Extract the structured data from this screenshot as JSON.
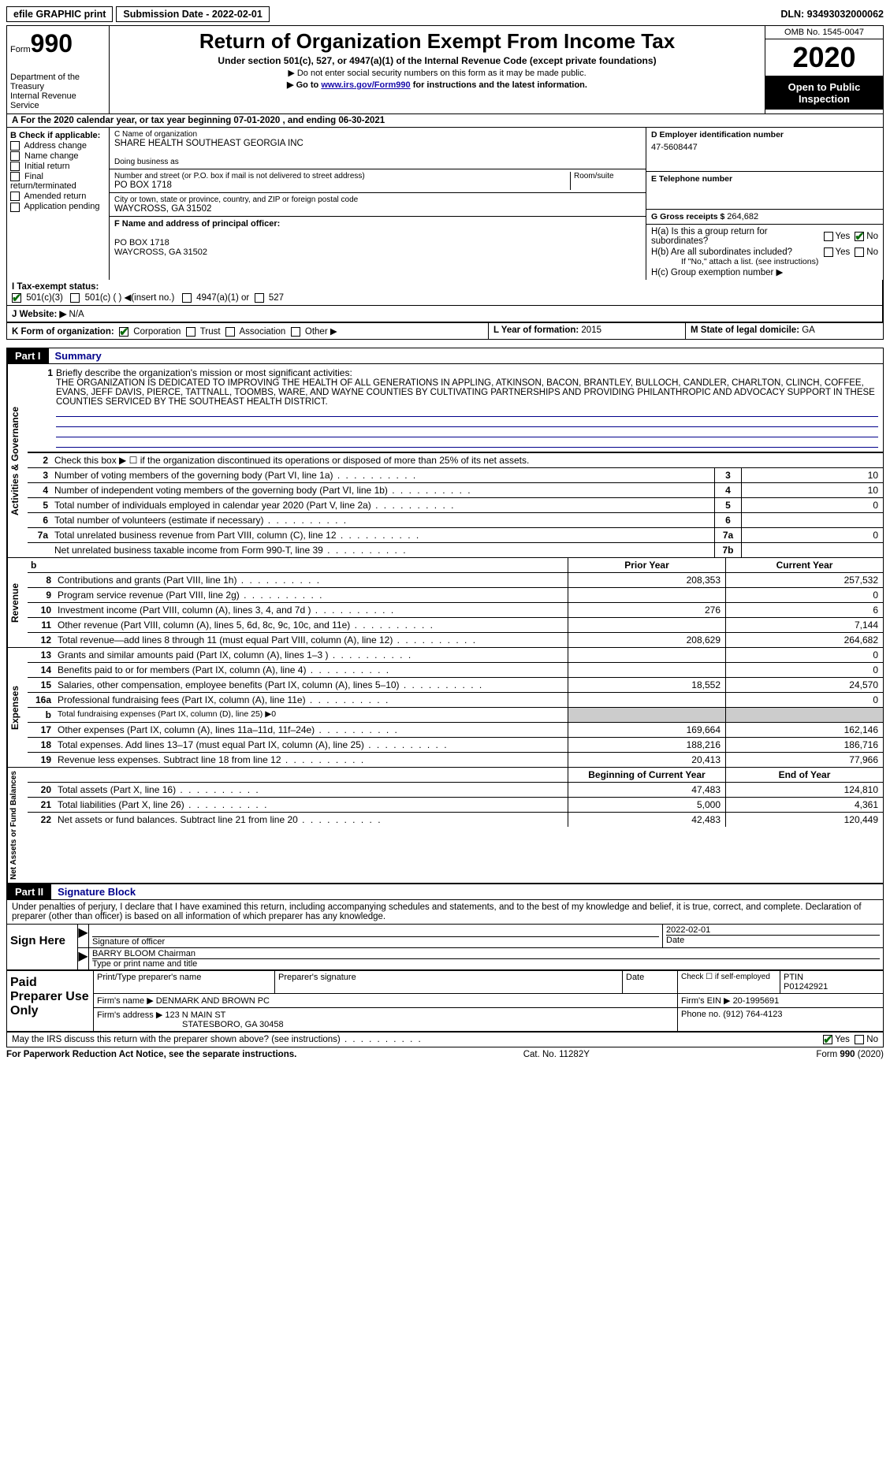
{
  "topbar": {
    "efile": "efile GRAPHIC print",
    "sub_label": "Submission Date - 2022-02-01",
    "dln": "DLN: 93493032000062"
  },
  "header": {
    "form_small": "Form",
    "form_big": "990",
    "dept1": "Department of the Treasury",
    "dept2": "Internal Revenue Service",
    "title": "Return of Organization Exempt From Income Tax",
    "sub": "Under section 501(c), 527, or 4947(a)(1) of the Internal Revenue Code (except private foundations)",
    "note1": "▶ Do not enter social security numbers on this form as it may be made public.",
    "note2_pre": "▶ Go to ",
    "note2_link": "www.irs.gov/Form990",
    "note2_post": " for instructions and the latest information.",
    "omb": "OMB No. 1545-0047",
    "year": "2020",
    "inspect1": "Open to Public",
    "inspect2": "Inspection"
  },
  "row_a": "A For the 2020 calendar year, or tax year beginning 07-01-2020   , and ending 06-30-2021",
  "col_b": {
    "label": "B Check if applicable:",
    "items": [
      "Address change",
      "Name change",
      "Initial return",
      "Final return/terminated",
      "Amended return",
      "Application pending"
    ]
  },
  "col_c": {
    "name_label": "C Name of organization",
    "name": "SHARE HEALTH SOUTHEAST GEORGIA INC",
    "dba_label": "Doing business as",
    "dba": "",
    "addr_label": "Number and street (or P.O. box if mail is not delivered to street address)",
    "addr": "PO BOX 1718",
    "suite_label": "Room/suite",
    "city_label": "City or town, state or province, country, and ZIP or foreign postal code",
    "city": "WAYCROSS, GA  31502",
    "officer_label": "F  Name and address of principal officer:",
    "officer_addr1": "PO BOX 1718",
    "officer_addr2": "WAYCROSS, GA  31502"
  },
  "col_d": {
    "ein_label": "D Employer identification number",
    "ein": "47-5608447",
    "phone_label": "E Telephone number",
    "phone": "",
    "gross_label": "G Gross receipts $ ",
    "gross": "264,682"
  },
  "tax_exempt": {
    "label": "I  Tax-exempt status:",
    "opt1": "501(c)(3)",
    "opt2": "501(c) (  ) ◀(insert no.)",
    "opt3": "4947(a)(1) or",
    "opt4": "527"
  },
  "h_block": {
    "ha": "H(a)  Is this a group return for subordinates?",
    "hb": "H(b)  Are all subordinates included?",
    "hb_note": "If \"No,\" attach a list. (see instructions)",
    "hc": "H(c)  Group exemption number ▶",
    "yes": "Yes",
    "no": "No"
  },
  "row_j": {
    "label": "J  Website: ▶",
    "val": "N/A"
  },
  "row_k": {
    "label": "K Form of organization:",
    "opts": [
      "Corporation",
      "Trust",
      "Association",
      "Other ▶"
    ],
    "l_label": "L Year of formation: ",
    "l_val": "2015",
    "m_label": "M State of legal domicile: ",
    "m_val": "GA"
  },
  "part1": {
    "tab": "Part I",
    "title": "Summary"
  },
  "mission": {
    "num": "1",
    "label": "Briefly describe the organization's mission or most significant activities:",
    "text": "THE ORGANIZATION IS DEDICATED TO IMPROVING THE HEALTH OF ALL GENERATIONS IN APPLING, ATKINSON, BACON, BRANTLEY, BULLOCH, CANDLER, CHARLTON, CLINCH, COFFEE, EVANS, JEFF DAVIS, PIERCE, TATTNALL, TOOMBS, WARE, AND WAYNE COUNTIES BY CULTIVATING PARTNERSHIPS AND PROVIDING PHILANTHROPIC AND ADVOCACY SUPPORT IN THESE COUNTIES SERVICED BY THE SOUTHEAST HEALTH DISTRICT."
  },
  "gov_check": {
    "num": "2",
    "txt": "Check this box ▶ ☐  if the organization discontinued its operations or disposed of more than 25% of its net assets."
  },
  "gov": [
    {
      "n": "3",
      "t": "Number of voting members of the governing body (Part VI, line 1a)",
      "bn": "3",
      "v": "10"
    },
    {
      "n": "4",
      "t": "Number of independent voting members of the governing body (Part VI, line 1b)",
      "bn": "4",
      "v": "10"
    },
    {
      "n": "5",
      "t": "Total number of individuals employed in calendar year 2020 (Part V, line 2a)",
      "bn": "5",
      "v": "0"
    },
    {
      "n": "6",
      "t": "Total number of volunteers (estimate if necessary)",
      "bn": "6",
      "v": ""
    },
    {
      "n": "7a",
      "t": "Total unrelated business revenue from Part VIII, column (C), line 12",
      "bn": "7a",
      "v": "0"
    },
    {
      "n": "",
      "t": "Net unrelated business taxable income from Form 990-T, line 39",
      "bn": "7b",
      "v": ""
    }
  ],
  "vlabels": {
    "gov": "Activities & Governance",
    "rev": "Revenue",
    "exp": "Expenses",
    "net": "Net Assets or Fund Balances"
  },
  "fin_hdr": {
    "prior": "Prior Year",
    "curr": "Current Year",
    "beg": "Beginning of Current Year",
    "end": "End of Year"
  },
  "rev": [
    {
      "n": "8",
      "t": "Contributions and grants (Part VIII, line 1h)",
      "p": "208,353",
      "c": "257,532"
    },
    {
      "n": "9",
      "t": "Program service revenue (Part VIII, line 2g)",
      "p": "",
      "c": "0"
    },
    {
      "n": "10",
      "t": "Investment income (Part VIII, column (A), lines 3, 4, and 7d )",
      "p": "276",
      "c": "6"
    },
    {
      "n": "11",
      "t": "Other revenue (Part VIII, column (A), lines 5, 6d, 8c, 9c, 10c, and 11e)",
      "p": "",
      "c": "7,144"
    },
    {
      "n": "12",
      "t": "Total revenue—add lines 8 through 11 (must equal Part VIII, column (A), line 12)",
      "p": "208,629",
      "c": "264,682"
    }
  ],
  "exp": [
    {
      "n": "13",
      "t": "Grants and similar amounts paid (Part IX, column (A), lines 1–3 )",
      "p": "",
      "c": "0"
    },
    {
      "n": "14",
      "t": "Benefits paid to or for members (Part IX, column (A), line 4)",
      "p": "",
      "c": "0"
    },
    {
      "n": "15",
      "t": "Salaries, other compensation, employee benefits (Part IX, column (A), lines 5–10)",
      "p": "18,552",
      "c": "24,570"
    },
    {
      "n": "16a",
      "t": "Professional fundraising fees (Part IX, column (A), line 11e)",
      "p": "",
      "c": "0"
    },
    {
      "n": "b",
      "t": "Total fundraising expenses (Part IX, column (D), line 25) ▶0",
      "p": "GREY",
      "c": "GREY",
      "small": true
    },
    {
      "n": "17",
      "t": "Other expenses (Part IX, column (A), lines 11a–11d, 11f–24e)",
      "p": "169,664",
      "c": "162,146"
    },
    {
      "n": "18",
      "t": "Total expenses. Add lines 13–17 (must equal Part IX, column (A), line 25)",
      "p": "188,216",
      "c": "186,716"
    },
    {
      "n": "19",
      "t": "Revenue less expenses. Subtract line 18 from line 12",
      "p": "20,413",
      "c": "77,966"
    }
  ],
  "net": [
    {
      "n": "20",
      "t": "Total assets (Part X, line 16)",
      "p": "47,483",
      "c": "124,810"
    },
    {
      "n": "21",
      "t": "Total liabilities (Part X, line 26)",
      "p": "5,000",
      "c": "4,361"
    },
    {
      "n": "22",
      "t": "Net assets or fund balances. Subtract line 21 from line 20",
      "p": "42,483",
      "c": "120,449"
    }
  ],
  "part2": {
    "tab": "Part II",
    "title": "Signature Block"
  },
  "sig_intro": "Under penalties of perjury, I declare that I have examined this return, including accompanying schedules and statements, and to the best of my knowledge and belief, it is true, correct, and complete. Declaration of preparer (other than officer) is based on all information of which preparer has any knowledge.",
  "sign": {
    "here": "Sign Here",
    "sig_label": "Signature of officer",
    "date": "2022-02-01",
    "date_label": "Date",
    "name": "BARRY BLOOM Chairman",
    "name_label": "Type or print name and title"
  },
  "prep": {
    "label": "Paid Preparer Use Only",
    "h1": "Print/Type preparer's name",
    "h2": "Preparer's signature",
    "h3": "Date",
    "h4_pre": "Check ☐ if self-employed",
    "h5_label": "PTIN",
    "h5": "P01242921",
    "firm_label": "Firm's name    ▶ ",
    "firm": "DENMARK AND BROWN PC",
    "ein_label": "Firm's EIN ▶ ",
    "ein": "20-1995691",
    "addr_label": "Firm's address ▶ ",
    "addr1": "123 N MAIN ST",
    "addr2": "STATESBORO, GA  30458",
    "phone_label": "Phone no. ",
    "phone": "(912) 764-4123"
  },
  "discuss": {
    "txt": "May the IRS discuss this return with the preparer shown above? (see instructions)",
    "yes": "Yes",
    "no": "No"
  },
  "footer": {
    "l": "For Paperwork Reduction Act Notice, see the separate instructions.",
    "m": "Cat. No. 11282Y",
    "r": "Form 990 (2020)"
  }
}
